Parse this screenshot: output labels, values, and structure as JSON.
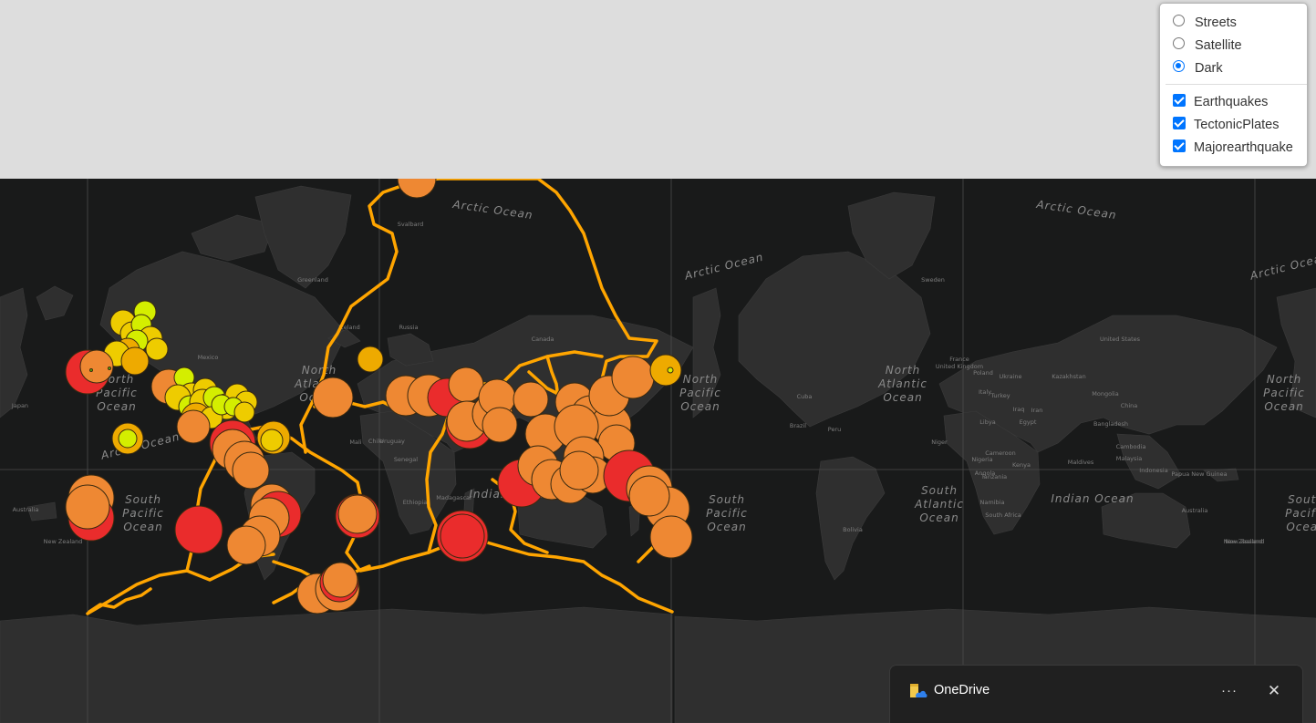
{
  "layer_control": {
    "base_layers": [
      {
        "label": "Streets",
        "checked": false
      },
      {
        "label": "Satellite",
        "checked": false
      },
      {
        "label": "Dark",
        "checked": true
      }
    ],
    "overlays": [
      {
        "label": "Earthquakes",
        "checked": true
      },
      {
        "label": "TectonicPlates",
        "checked": true
      },
      {
        "label": "Majorearthquake",
        "checked": true
      }
    ]
  },
  "map": {
    "style": "dark",
    "ocean_labels": [
      "Arctic Ocean",
      "North Pacific Ocean",
      "South Pacific Ocean",
      "North Atlantic Ocean",
      "South Atlantic Ocean",
      "Indian Ocean"
    ],
    "place_labels": [
      "Greenland",
      "Iceland",
      "Sweden",
      "Russia",
      "Canada",
      "United States",
      "Mexico",
      "Cuba",
      "Brazil",
      "Peru",
      "Chile",
      "Uruguay",
      "Mali",
      "Niger",
      "Senegal",
      "Nigeria",
      "Cameroon",
      "Ethiopia",
      "Tanzania",
      "Namibia",
      "Madagascar",
      "South Africa",
      "Kazakhstan",
      "Mongolia",
      "China",
      "Iran",
      "Iraq",
      "Libya",
      "Egypt",
      "Turkey",
      "Ukraine",
      "Poland",
      "Italy",
      "France",
      "United Kingdom",
      "Japan",
      "Bangladesh",
      "Cambodia",
      "Malaysia",
      "Indonesia",
      "Maldives",
      "Papua New Guinea",
      "Australia",
      "New Zealand",
      "Svalbard",
      "Bolivia",
      "Angola",
      "Kenya"
    ],
    "legend_colors": {
      "mag_lt1": "#d4ee00",
      "mag_1_2": "#eecc00",
      "mag_2_3": "#eeaa00",
      "mag_3_4": "#ee8833",
      "mag_gt5": "#ea2c2c",
      "plate_line": "#ffa500",
      "background": "#191a1a",
      "land": "#2f2f2f"
    }
  },
  "notification": {
    "app_name": "OneDrive",
    "more_label": "···",
    "close_label": "✕"
  }
}
